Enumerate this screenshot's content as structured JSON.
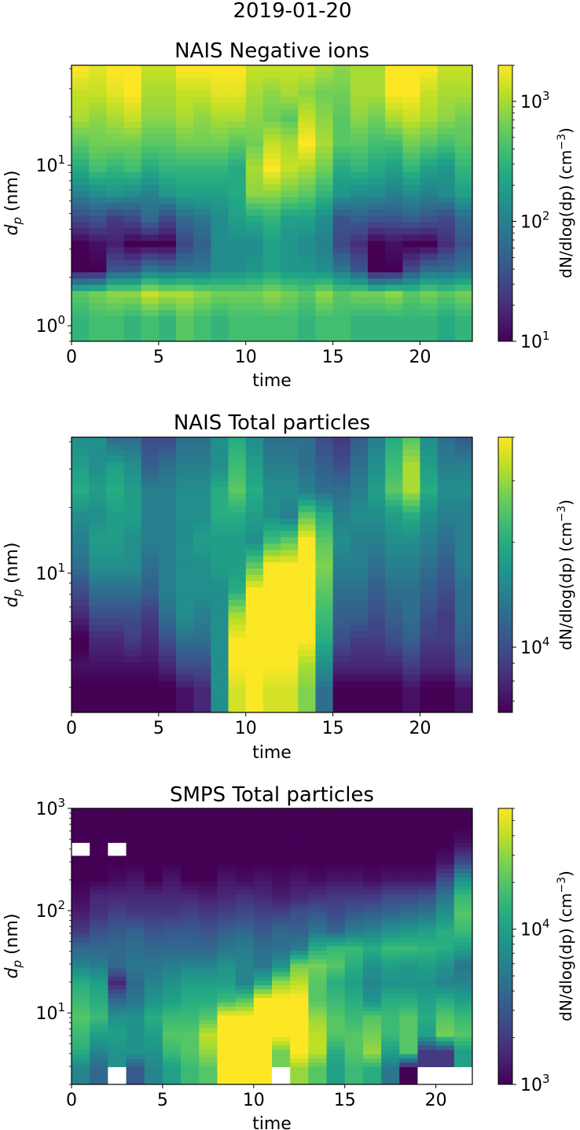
{
  "suptitle": "2019-01-20",
  "chart_data": [
    {
      "type": "heatmap",
      "title": "NAIS Negative ions",
      "xlabel": "time",
      "ylabel": "d_p (nm)",
      "xlim": [
        0,
        23
      ],
      "xticks": [
        0,
        5,
        10,
        15,
        20
      ],
      "yscale": "log",
      "ylim": [
        0.8,
        42
      ],
      "yticks": [
        {
          "value": 1,
          "label": "10^0"
        },
        {
          "value": 10,
          "label": "10^1"
        }
      ],
      "colorbar": {
        "label": "dN/dlog(dp) (cm^-3)",
        "scale": "log",
        "range": [
          10,
          2000
        ],
        "ticks": [
          {
            "value": 10,
            "label": "10^1"
          },
          {
            "value": 100,
            "label": "10^2"
          },
          {
            "value": 1000,
            "label": "10^3"
          }
        ]
      },
      "time_bins": 23,
      "size_rows_note": "rows from largest size (top) to smallest (bottom); values are log10 concentration",
      "rows_log10": [
        [
          3.3,
          3.2,
          3.3,
          3.3,
          3.1,
          3.1,
          3.3,
          3.3,
          3.3,
          3.3,
          3.1,
          3.1,
          3.1,
          3.1,
          3.0,
          2.9,
          3.0,
          3.0,
          3.3,
          3.3,
          3.3,
          3.1,
          3.1
        ],
        [
          3.1,
          3.1,
          3.2,
          3.3,
          3.0,
          3.0,
          3.1,
          3.1,
          3.2,
          3.2,
          3.0,
          2.9,
          3.0,
          2.9,
          2.8,
          2.8,
          3.0,
          3.0,
          3.3,
          3.3,
          3.1,
          3.0,
          3.0
        ],
        [
          3.0,
          2.9,
          3.0,
          3.1,
          2.9,
          2.9,
          3.0,
          2.9,
          3.0,
          3.0,
          2.9,
          2.8,
          2.7,
          3.1,
          2.9,
          2.7,
          2.9,
          2.8,
          3.0,
          3.1,
          3.0,
          2.9,
          2.8
        ],
        [
          2.7,
          2.8,
          2.8,
          2.8,
          2.7,
          2.7,
          2.8,
          2.8,
          2.8,
          2.7,
          2.8,
          3.1,
          3.0,
          3.3,
          3.0,
          2.7,
          2.7,
          2.6,
          2.6,
          2.8,
          2.7,
          2.6,
          2.7
        ],
        [
          2.4,
          2.6,
          2.5,
          2.6,
          2.4,
          2.5,
          2.5,
          2.5,
          2.5,
          2.4,
          3.0,
          3.3,
          3.1,
          3.0,
          2.8,
          2.4,
          2.5,
          2.4,
          2.3,
          2.5,
          2.3,
          2.2,
          2.5
        ],
        [
          2.0,
          2.1,
          2.2,
          2.1,
          2.0,
          2.2,
          2.3,
          2.3,
          2.3,
          2.4,
          2.9,
          2.9,
          2.8,
          2.7,
          2.5,
          2.2,
          2.1,
          2.1,
          2.0,
          2.1,
          2.0,
          2.1,
          2.3
        ],
        [
          1.5,
          1.6,
          1.4,
          1.5,
          1.8,
          1.5,
          1.8,
          1.9,
          2.1,
          2.3,
          2.4,
          2.5,
          2.3,
          2.3,
          2.1,
          1.6,
          1.7,
          1.6,
          1.6,
          1.7,
          1.6,
          1.5,
          1.8
        ],
        [
          1.0,
          1.1,
          1.2,
          1.0,
          1.0,
          1.0,
          1.5,
          1.7,
          2.1,
          2.1,
          2.1,
          2.3,
          2.2,
          2.1,
          2.0,
          1.5,
          1.3,
          1.0,
          1.1,
          1.0,
          1.0,
          1.3,
          1.6
        ],
        [
          1.0,
          1.0,
          1.6,
          1.6,
          1.9,
          1.8,
          1.9,
          1.9,
          2.1,
          2.1,
          2.2,
          2.3,
          2.2,
          2.2,
          2.1,
          1.9,
          1.6,
          1.0,
          1.0,
          1.5,
          1.8,
          1.8,
          1.9
        ],
        [
          2.7,
          2.8,
          2.9,
          2.9,
          3.1,
          3.0,
          3.0,
          2.9,
          2.8,
          2.8,
          2.8,
          2.9,
          2.8,
          2.7,
          2.9,
          2.7,
          2.8,
          2.8,
          2.9,
          2.7,
          2.8,
          2.7,
          2.8
        ],
        [
          2.5,
          2.6,
          2.6,
          2.5,
          2.6,
          2.5,
          2.7,
          2.6,
          2.5,
          2.6,
          2.6,
          2.6,
          2.6,
          2.5,
          2.6,
          2.6,
          2.5,
          2.5,
          2.5,
          2.5,
          2.5,
          2.4,
          2.5
        ]
      ]
    },
    {
      "type": "heatmap",
      "title": "NAIS Total particles",
      "xlabel": "time",
      "ylabel": "d_p (nm)",
      "xlim": [
        0,
        23
      ],
      "xticks": [
        0,
        5,
        10,
        15,
        20
      ],
      "yscale": "log",
      "ylim": [
        2.3,
        42
      ],
      "yticks": [
        {
          "value": 10,
          "label": "10^1"
        }
      ],
      "colorbar": {
        "label": "dN/dlog(dp) (cm^-3)",
        "scale": "log",
        "range": [
          6500,
          40000
        ],
        "ticks": [
          {
            "value": 10000,
            "label": "10^4"
          }
        ]
      },
      "time_bins": 23,
      "size_rows_note": "rows from largest size (top) to smallest (bottom); values are log10 concentration",
      "rows_log10": [
        [
          4.2,
          4.2,
          4.1,
          4.1,
          4.0,
          4.0,
          4.1,
          4.1,
          4.2,
          4.3,
          4.2,
          4.1,
          4.1,
          4.1,
          4.0,
          3.95,
          4.05,
          4.15,
          4.3,
          4.4,
          4.2,
          4.1,
          4.05
        ],
        [
          4.25,
          4.2,
          4.25,
          4.2,
          4.05,
          4.1,
          4.15,
          4.15,
          4.2,
          4.35,
          4.25,
          4.15,
          4.15,
          4.1,
          4.05,
          4.0,
          4.1,
          4.2,
          4.35,
          4.5,
          4.25,
          4.15,
          4.15
        ],
        [
          4.3,
          4.25,
          4.3,
          4.25,
          4.15,
          4.15,
          4.2,
          4.2,
          4.3,
          4.4,
          4.3,
          4.2,
          4.2,
          4.15,
          4.1,
          4.1,
          4.15,
          4.25,
          4.4,
          4.5,
          4.3,
          4.2,
          4.2
        ],
        [
          4.2,
          4.2,
          4.25,
          4.25,
          4.15,
          4.15,
          4.2,
          4.2,
          4.3,
          4.3,
          4.25,
          4.2,
          4.15,
          4.4,
          4.3,
          4.15,
          4.2,
          4.2,
          4.25,
          4.3,
          4.2,
          4.15,
          4.15
        ],
        [
          4.15,
          4.25,
          4.25,
          4.2,
          4.15,
          4.15,
          4.2,
          4.25,
          4.25,
          4.25,
          4.2,
          4.35,
          4.4,
          4.6,
          4.4,
          4.2,
          4.15,
          4.15,
          4.2,
          4.2,
          4.15,
          4.1,
          4.15
        ],
        [
          4.1,
          4.2,
          4.2,
          4.2,
          4.1,
          4.15,
          4.2,
          4.2,
          4.25,
          4.25,
          4.4,
          4.6,
          4.6,
          4.6,
          4.45,
          4.15,
          4.15,
          4.1,
          4.15,
          4.15,
          4.1,
          4.05,
          4.15
        ],
        [
          4.0,
          4.1,
          4.1,
          4.1,
          4.05,
          4.15,
          4.2,
          4.2,
          4.2,
          4.3,
          4.6,
          4.6,
          4.6,
          4.6,
          4.4,
          4.1,
          4.1,
          4.05,
          4.1,
          4.1,
          4.05,
          4.0,
          4.1
        ],
        [
          3.9,
          4.0,
          4.0,
          4.0,
          3.95,
          4.1,
          4.2,
          4.15,
          4.2,
          4.5,
          4.6,
          4.6,
          4.6,
          4.6,
          4.35,
          4.05,
          4.05,
          4.0,
          4.05,
          4.1,
          4.0,
          3.95,
          4.1
        ],
        [
          3.8,
          3.9,
          3.9,
          3.95,
          3.9,
          4.0,
          4.1,
          4.1,
          4.2,
          4.6,
          4.6,
          4.6,
          4.6,
          4.6,
          4.3,
          4.0,
          3.95,
          3.95,
          4.0,
          4.05,
          3.95,
          3.95,
          4.05
        ],
        [
          3.85,
          3.85,
          3.85,
          3.85,
          3.85,
          3.9,
          4.0,
          4.0,
          4.2,
          4.6,
          4.6,
          4.6,
          4.6,
          4.5,
          4.2,
          3.9,
          3.9,
          3.9,
          3.9,
          3.95,
          3.9,
          3.9,
          4.0
        ],
        [
          3.8,
          3.8,
          3.8,
          3.8,
          3.8,
          3.8,
          3.85,
          3.9,
          4.2,
          4.55,
          4.6,
          4.55,
          4.55,
          4.45,
          4.1,
          3.8,
          3.8,
          3.8,
          3.8,
          3.85,
          3.8,
          3.8,
          3.85
        ]
      ]
    },
    {
      "type": "heatmap",
      "title": "SMPS Total particles",
      "xlabel": "time",
      "ylabel": "d_p (nm)",
      "xlim": [
        0,
        22
      ],
      "xticks": [
        0,
        5,
        10,
        15,
        20
      ],
      "yscale": "log",
      "ylim": [
        2,
        1000
      ],
      "yticks": [
        {
          "value": 10,
          "label": "10^1"
        },
        {
          "value": 100,
          "label": "10^2"
        },
        {
          "value": 1000,
          "label": "10^3"
        }
      ],
      "colorbar": {
        "label": "dN/dlog(dp) (cm^-3)",
        "scale": "log",
        "range": [
          1000,
          60000
        ],
        "ticks": [
          {
            "value": 1000,
            "label": "10^3"
          },
          {
            "value": 10000,
            "label": "10^4"
          }
        ]
      },
      "time_bins": 22,
      "size_rows_note": "rows from largest size (top) to smallest (bottom); values are log10 concentration; null = missing",
      "rows_log10": [
        [
          3.0,
          3.0,
          3.0,
          3.0,
          3.0,
          3.0,
          3.0,
          3.0,
          3.0,
          3.0,
          3.0,
          3.0,
          3.0,
          3.0,
          3.0,
          3.0,
          3.0,
          3.0,
          3.0,
          3.0,
          3.0,
          3.0
        ],
        [
          3.0,
          3.0,
          3.0,
          3.0,
          3.0,
          3.0,
          3.0,
          3.0,
          3.0,
          3.0,
          3.0,
          3.0,
          3.0,
          3.0,
          3.0,
          3.0,
          3.0,
          3.0,
          3.0,
          3.0,
          3.0,
          3.0
        ],
        [
          null,
          3.0,
          null,
          3.0,
          3.0,
          3.0,
          3.0,
          3.0,
          3.0,
          3.0,
          3.0,
          3.0,
          3.0,
          3.0,
          3.0,
          3.0,
          3.0,
          3.0,
          3.0,
          3.0,
          3.0,
          3.1
        ],
        [
          3.0,
          3.0,
          3.0,
          3.0,
          3.0,
          3.0,
          3.0,
          3.0,
          3.0,
          3.0,
          3.0,
          3.0,
          3.0,
          3.0,
          3.0,
          3.0,
          3.0,
          3.0,
          3.0,
          3.0,
          3.1,
          3.4
        ],
        [
          3.0,
          3.0,
          3.05,
          3.1,
          3.0,
          3.1,
          3.0,
          3.0,
          3.1,
          3.05,
          3.1,
          3.05,
          3.1,
          3.05,
          3.1,
          3.1,
          3.05,
          3.1,
          3.1,
          3.1,
          3.4,
          3.9
        ],
        [
          3.05,
          3.2,
          3.2,
          3.2,
          3.2,
          3.2,
          3.2,
          3.15,
          3.2,
          3.25,
          3.2,
          3.15,
          3.2,
          3.25,
          3.3,
          3.3,
          3.3,
          3.4,
          3.4,
          3.45,
          3.7,
          4.2
        ],
        [
          3.15,
          3.25,
          3.35,
          3.3,
          3.3,
          3.3,
          3.35,
          3.3,
          3.35,
          3.4,
          3.35,
          3.35,
          3.45,
          3.5,
          3.4,
          3.5,
          3.55,
          3.6,
          3.65,
          3.7,
          3.9,
          4.3
        ],
        [
          3.3,
          3.45,
          3.5,
          3.55,
          3.45,
          3.5,
          3.5,
          3.45,
          3.55,
          3.6,
          3.5,
          3.6,
          3.55,
          3.7,
          3.6,
          3.75,
          3.8,
          3.9,
          3.95,
          4.0,
          4.1,
          4.2
        ],
        [
          3.6,
          3.6,
          3.6,
          3.65,
          3.6,
          3.6,
          3.6,
          3.6,
          3.7,
          3.75,
          3.65,
          3.65,
          3.75,
          4.1,
          4.2,
          4.2,
          4.1,
          4.2,
          4.2,
          4.15,
          4.1,
          4.0
        ],
        [
          3.8,
          3.75,
          3.6,
          3.7,
          3.7,
          3.75,
          3.8,
          3.8,
          3.9,
          3.8,
          3.7,
          3.9,
          4.4,
          4.4,
          4.3,
          4.1,
          3.9,
          4.0,
          3.95,
          4.0,
          3.9,
          3.7
        ],
        [
          4.1,
          4.0,
          3.2,
          3.6,
          3.8,
          3.9,
          4.0,
          4.0,
          4.0,
          3.8,
          4.1,
          4.5,
          4.6,
          4.3,
          4.1,
          4.0,
          3.8,
          3.9,
          3.9,
          3.9,
          3.8,
          3.8
        ],
        [
          4.2,
          4.1,
          3.6,
          3.7,
          3.9,
          4.0,
          4.1,
          4.1,
          4.2,
          4.3,
          4.8,
          4.8,
          4.8,
          4.3,
          4.2,
          4.1,
          3.9,
          4.1,
          4.1,
          4.0,
          4.1,
          4.0
        ],
        [
          4.3,
          4.2,
          3.9,
          3.9,
          4.1,
          4.2,
          4.2,
          4.3,
          4.8,
          4.8,
          4.8,
          4.8,
          4.8,
          4.5,
          4.3,
          4.2,
          4.3,
          4.2,
          4.3,
          4.1,
          4.3,
          4.2
        ],
        [
          4.2,
          4.0,
          4.0,
          3.9,
          4.0,
          4.3,
          4.3,
          4.6,
          4.8,
          4.8,
          4.8,
          4.8,
          4.8,
          4.6,
          4.3,
          4.3,
          4.4,
          4.2,
          4.3,
          4.0,
          4.4,
          4.3
        ],
        [
          4.1,
          3.8,
          3.9,
          3.9,
          3.9,
          4.2,
          4.3,
          4.5,
          4.8,
          4.8,
          4.8,
          4.4,
          4.8,
          4.6,
          4.1,
          4.3,
          4.5,
          4.0,
          4.3,
          3.3,
          3.3,
          4.0
        ],
        [
          3.8,
          3.6,
          null,
          3.5,
          3.8,
          4.0,
          4.2,
          4.3,
          4.8,
          4.8,
          4.8,
          null,
          4.5,
          4.3,
          4.0,
          4.2,
          4.1,
          3.7,
          3.0,
          null,
          null,
          null
        ]
      ]
    }
  ]
}
